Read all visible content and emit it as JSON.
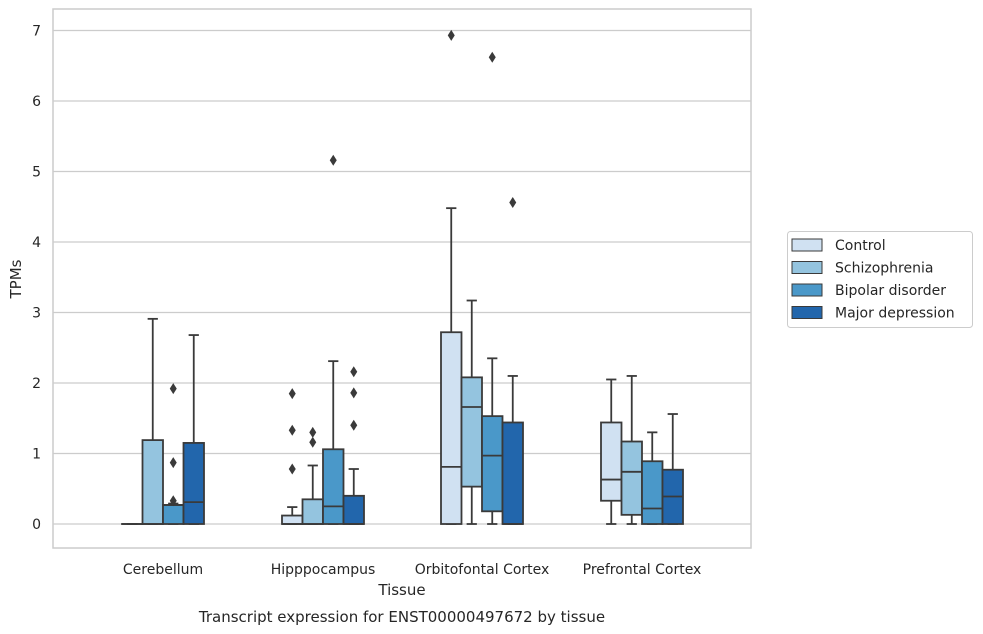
{
  "chart_data": {
    "type": "box",
    "title": "",
    "caption": "Transcript expression for ENST00000497672 by tissue",
    "xlabel": "Tissue",
    "ylabel": "TPMs",
    "ylim": [
      -0.33,
      7.3
    ],
    "yticks": [
      0,
      1,
      2,
      3,
      4,
      5,
      6,
      7
    ],
    "categories": [
      "Cerebellum",
      "Hipppocampus",
      "Orbitofontal Cortex",
      "Prefrontal Cortex"
    ],
    "grid": "horizontal",
    "legend_position": "right",
    "series": [
      {
        "name": "Control",
        "color": "#d0e1f2",
        "boxes": [
          {
            "min": 0,
            "q1": 0,
            "median": 0,
            "q3": 0,
            "max": 0,
            "outliers": []
          },
          {
            "min": 0,
            "q1": 0,
            "median": 0,
            "q3": 0.12,
            "max": 0.24,
            "outliers": [
              0.78,
              1.33,
              1.85
            ]
          },
          {
            "min": 0,
            "q1": 0,
            "median": 0.81,
            "q3": 2.72,
            "max": 4.48,
            "outliers": [
              6.93
            ]
          },
          {
            "min": 0,
            "q1": 0.33,
            "median": 0.63,
            "q3": 1.44,
            "max": 2.05,
            "outliers": []
          }
        ]
      },
      {
        "name": "Schizophrenia",
        "color": "#94c4df",
        "boxes": [
          {
            "min": 0,
            "q1": 0,
            "median": 0,
            "q3": 1.19,
            "max": 2.91,
            "outliers": []
          },
          {
            "min": 0,
            "q1": 0,
            "median": 0,
            "q3": 0.35,
            "max": 0.83,
            "outliers": [
              1.16,
              1.3
            ]
          },
          {
            "min": 0,
            "q1": 0.53,
            "median": 1.66,
            "q3": 2.08,
            "max": 3.17,
            "outliers": []
          },
          {
            "min": 0,
            "q1": 0.13,
            "median": 0.74,
            "q3": 1.17,
            "max": 2.1,
            "outliers": []
          }
        ]
      },
      {
        "name": "Bipolar disorder",
        "color": "#4a98c9",
        "boxes": [
          {
            "min": 0,
            "q1": 0,
            "median": 0.27,
            "q3": 0.27,
            "max": 0.29,
            "outliers": [
              0.33,
              0.87,
              1.92
            ]
          },
          {
            "min": 0,
            "q1": 0,
            "median": 0.25,
            "q3": 1.06,
            "max": 2.31,
            "outliers": [
              5.16
            ]
          },
          {
            "min": 0,
            "q1": 0.18,
            "median": 0.97,
            "q3": 1.53,
            "max": 2.35,
            "outliers": [
              6.62
            ]
          },
          {
            "min": 0,
            "q1": 0,
            "median": 0.22,
            "q3": 0.89,
            "max": 1.3,
            "outliers": []
          }
        ]
      },
      {
        "name": "Major depression",
        "color": "#2266ac",
        "boxes": [
          {
            "min": 0,
            "q1": 0,
            "median": 0.31,
            "q3": 1.15,
            "max": 2.68,
            "outliers": []
          },
          {
            "min": 0,
            "q1": 0,
            "median": 0,
            "q3": 0.4,
            "max": 0.78,
            "outliers": [
              1.4,
              1.86,
              2.16
            ]
          },
          {
            "min": 0,
            "q1": 0,
            "median": 0,
            "q3": 1.44,
            "max": 2.1,
            "outliers": [
              4.56
            ]
          },
          {
            "min": 0,
            "q1": 0,
            "median": 0.39,
            "q3": 0.77,
            "max": 1.56,
            "outliers": []
          }
        ]
      }
    ]
  },
  "colors": {
    "outline": "#3a3a3a",
    "grid": "#cccccc",
    "frame": "#cccccc"
  }
}
